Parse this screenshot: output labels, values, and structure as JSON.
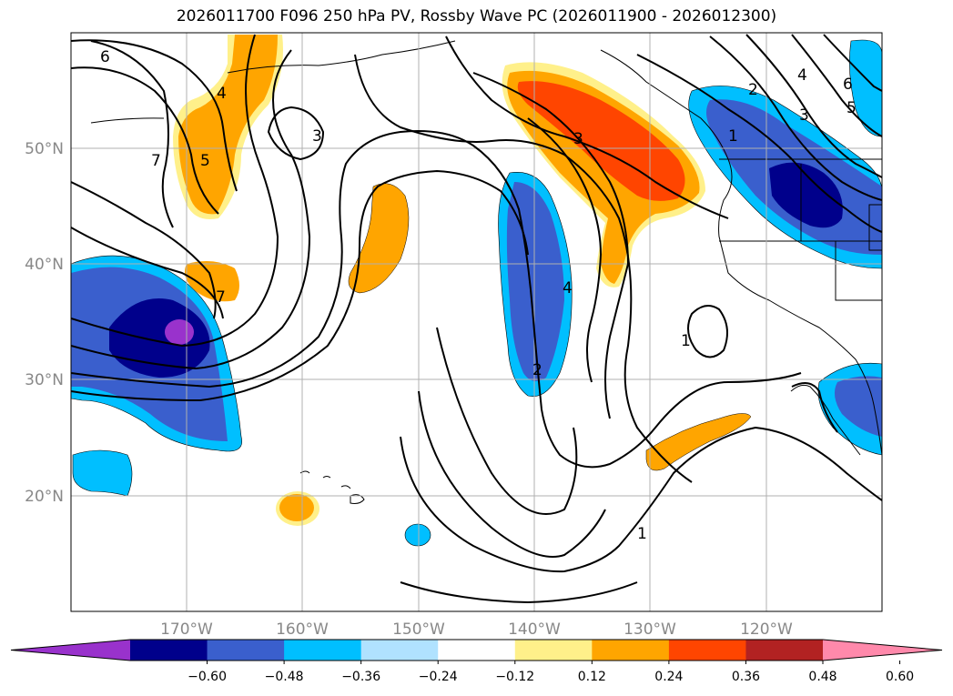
{
  "title": "2026011700 F096 250 hPa PV, Rossby Wave PC (2026011900 - 2026012300)",
  "lat_labels": [
    "50°N",
    "40°N",
    "30°N",
    "20°N"
  ],
  "lon_labels": [
    "170°W",
    "160°W",
    "150°W",
    "140°W",
    "130°W",
    "120°W"
  ],
  "colorbar": {
    "colors": [
      "#9932cc",
      "#00008b",
      "#3a5fcd",
      "#00bfff",
      "#b0e2ff",
      "#ffffff",
      "#fff08a",
      "#ffa500",
      "#ff4500",
      "#b22222",
      "#ff89ab"
    ],
    "tick_labels": [
      "−0.60",
      "−0.48",
      "−0.36",
      "−0.24",
      "−0.12",
      "0.12",
      "0.24",
      "0.36",
      "0.48",
      "0.60"
    ]
  },
  "contour_labels": {
    "c6a": "6",
    "c4a": "4",
    "c5a": "5",
    "c7a": "7",
    "c3a": "3",
    "c7b": "7",
    "c3b": "3",
    "c4b": "4",
    "c2b": "2",
    "c1c": "1",
    "c1d": "1",
    "c2e": "2",
    "c4e": "4",
    "c6e": "6",
    "c5e": "5",
    "c1e": "1",
    "c3e": "3"
  }
}
